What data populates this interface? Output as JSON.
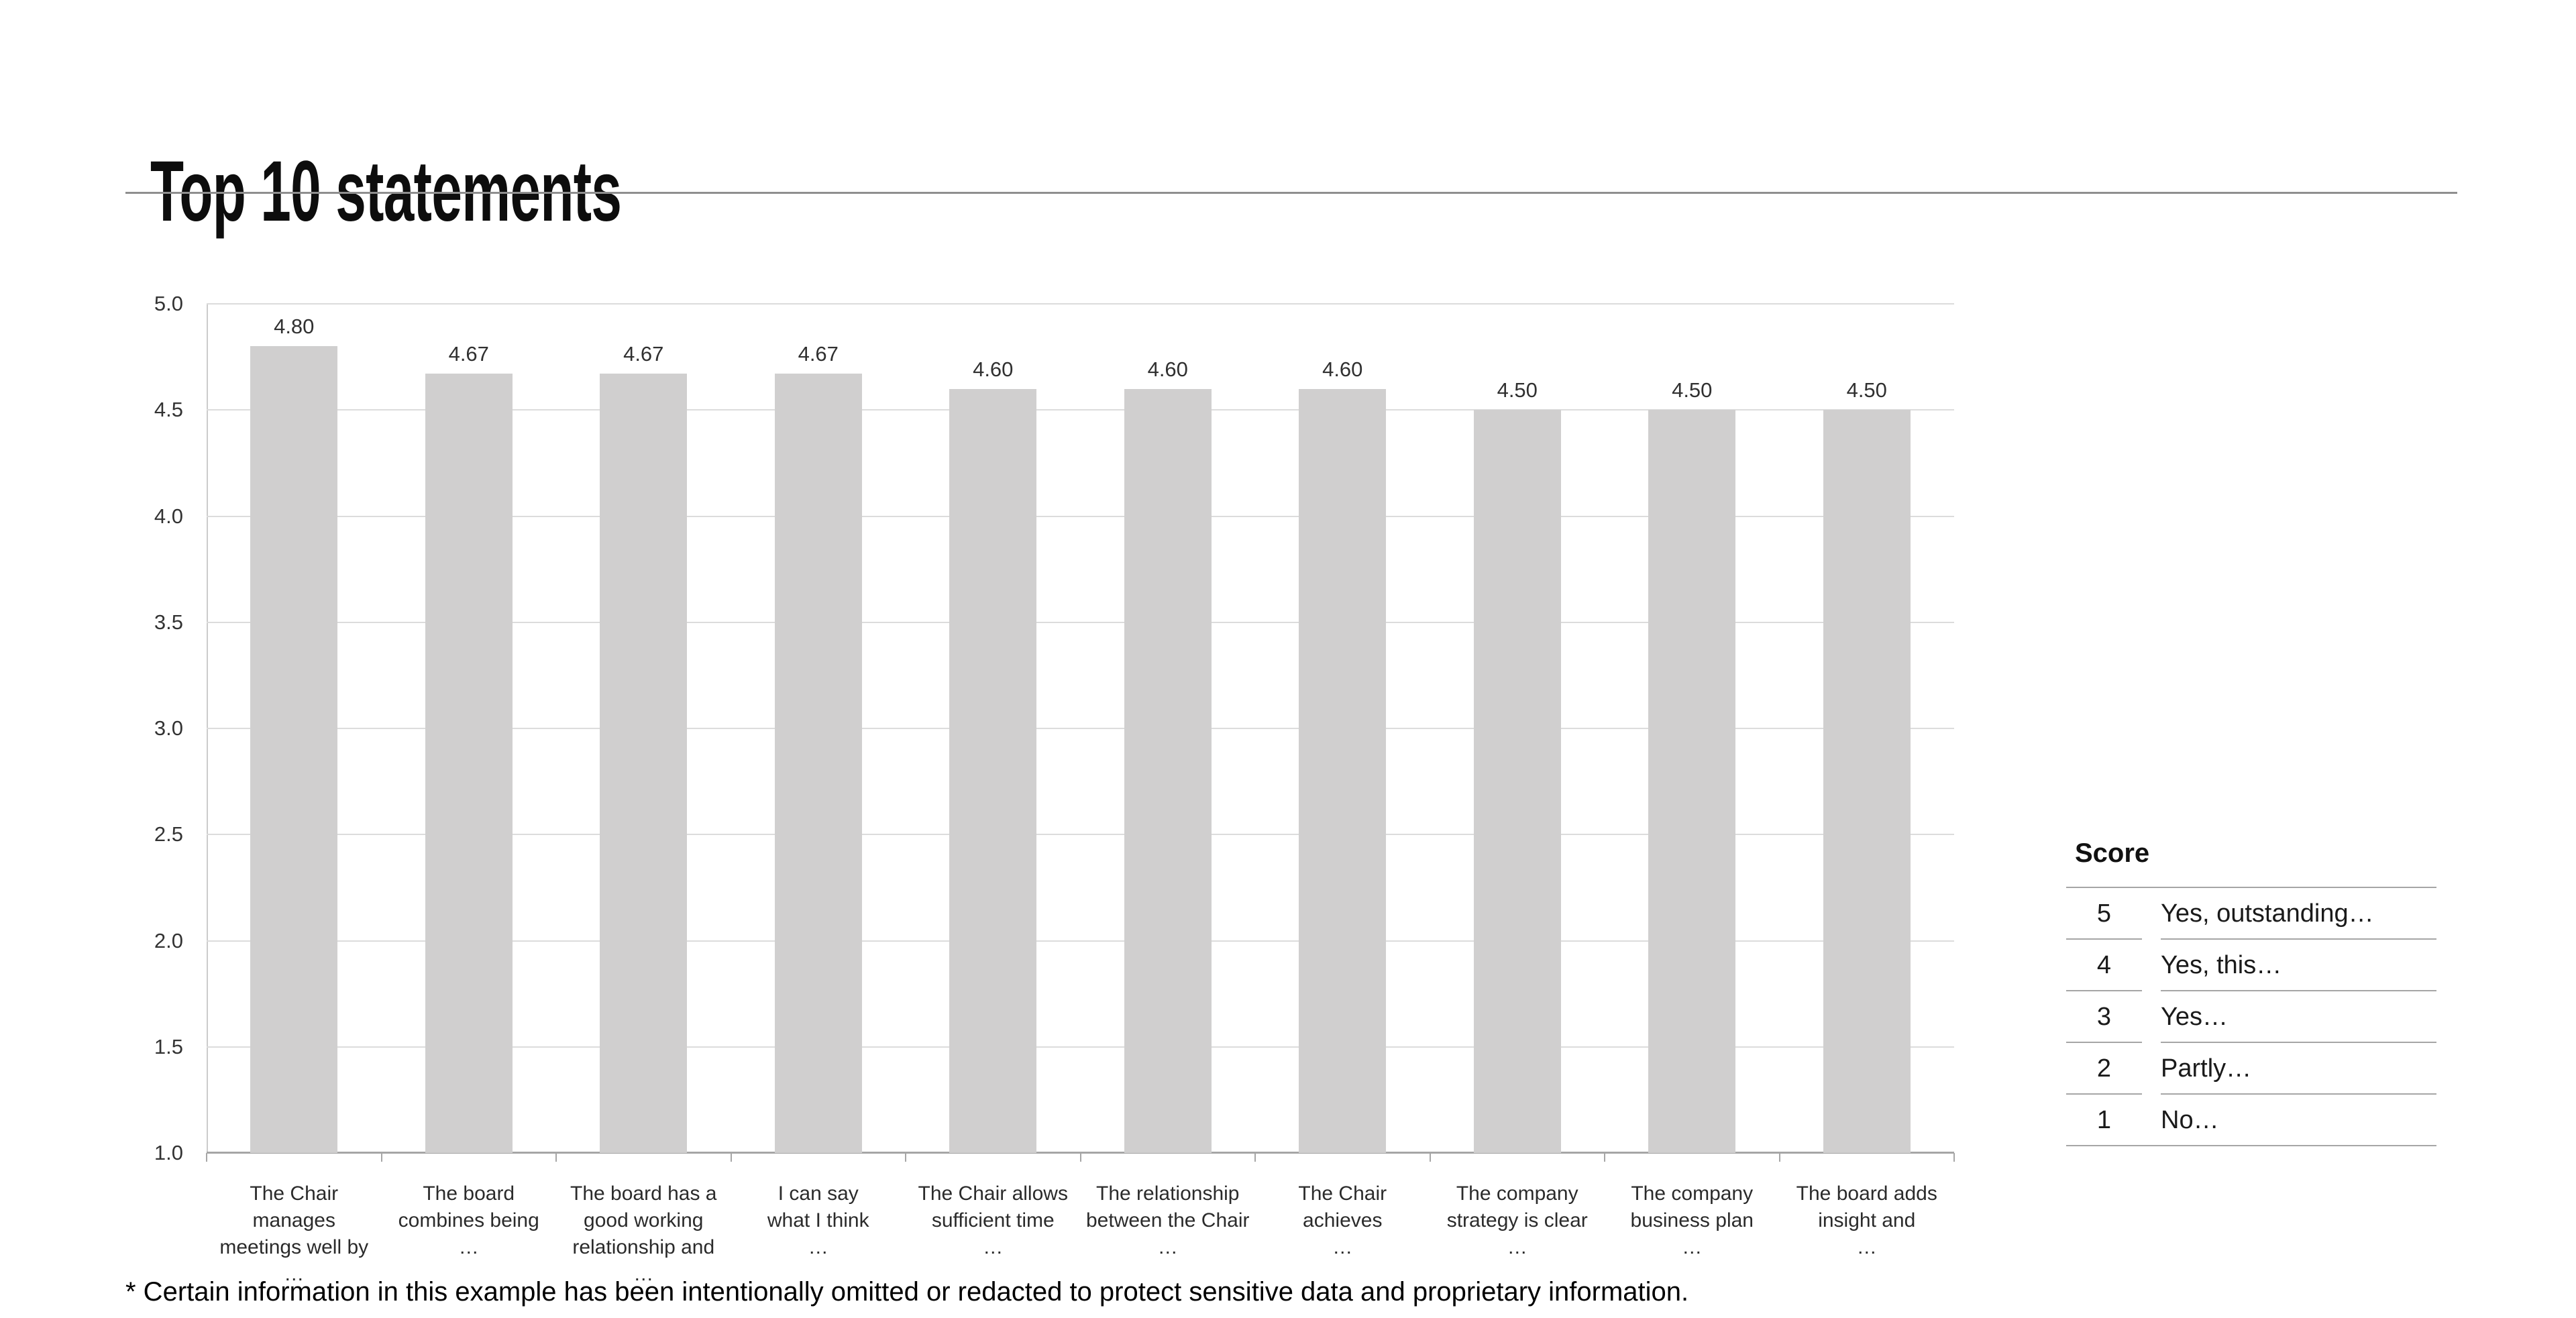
{
  "chart_data": {
    "type": "bar",
    "title": "Top 10 statements",
    "categories": [
      "The Chair manages meetings well by …",
      "The board combines being …",
      "The board has a good working relationship and …",
      "I can say what I think …",
      "The Chair allows sufficient time …",
      "The relationship between the Chair …",
      "The Chair achieves …",
      "The company strategy is clear …",
      "The company business plan …",
      "The board adds insight and …"
    ],
    "category_label_lines": [
      [
        "The Chair manages",
        "meetings well by",
        "…"
      ],
      [
        "The board",
        "combines being",
        "…"
      ],
      [
        "The board has a",
        "good working",
        "relationship and",
        "…"
      ],
      [
        "I can say",
        "what I think",
        "…"
      ],
      [
        "The Chair allows",
        "sufficient time",
        "…"
      ],
      [
        "The relationship",
        "between the Chair",
        "…"
      ],
      [
        "The Chair",
        "achieves",
        "…"
      ],
      [
        "The company",
        "strategy is clear",
        "…"
      ],
      [
        "The company",
        "business plan",
        "…"
      ],
      [
        "The board adds",
        "insight and",
        "…"
      ]
    ],
    "values": [
      4.8,
      4.67,
      4.67,
      4.67,
      4.6,
      4.6,
      4.6,
      4.5,
      4.5,
      4.5
    ],
    "value_labels": [
      "4.80",
      "4.67",
      "4.67",
      "4.67",
      "4.60",
      "4.60",
      "4.60",
      "4.50",
      "4.50",
      "4.50"
    ],
    "xlabel": "",
    "ylabel": "",
    "ylim": [
      1.0,
      5.0
    ],
    "ytick_step": 0.5,
    "yticks": [
      "5.0",
      "4.5",
      "4.0",
      "3.5",
      "3.0",
      "2.5",
      "2.0",
      "1.5",
      "1.0"
    ],
    "grid": true,
    "legend_position": "none",
    "bar_color": "#d0cfcf"
  },
  "score_table": {
    "header": "Score",
    "rows": [
      {
        "score": "5",
        "label": "Yes, outstanding…"
      },
      {
        "score": "4",
        "label": "Yes, this…"
      },
      {
        "score": "3",
        "label": "Yes…"
      },
      {
        "score": "2",
        "label": "Partly…"
      },
      {
        "score": "1",
        "label": "No…"
      }
    ]
  },
  "footnote": "* Certain information in this example has been intentionally omitted or redacted to protect sensitive data and proprietary information.",
  "colors": {
    "background": "#ffffff",
    "bar": "#d0cfcf",
    "gridline": "#dcdcdc",
    "axis": "#a6a6a6",
    "left_axis": "#cccccc",
    "title_rule": "#8f8f8f",
    "table_line": "#a6a6a6",
    "text": "#1a1a1a"
  }
}
